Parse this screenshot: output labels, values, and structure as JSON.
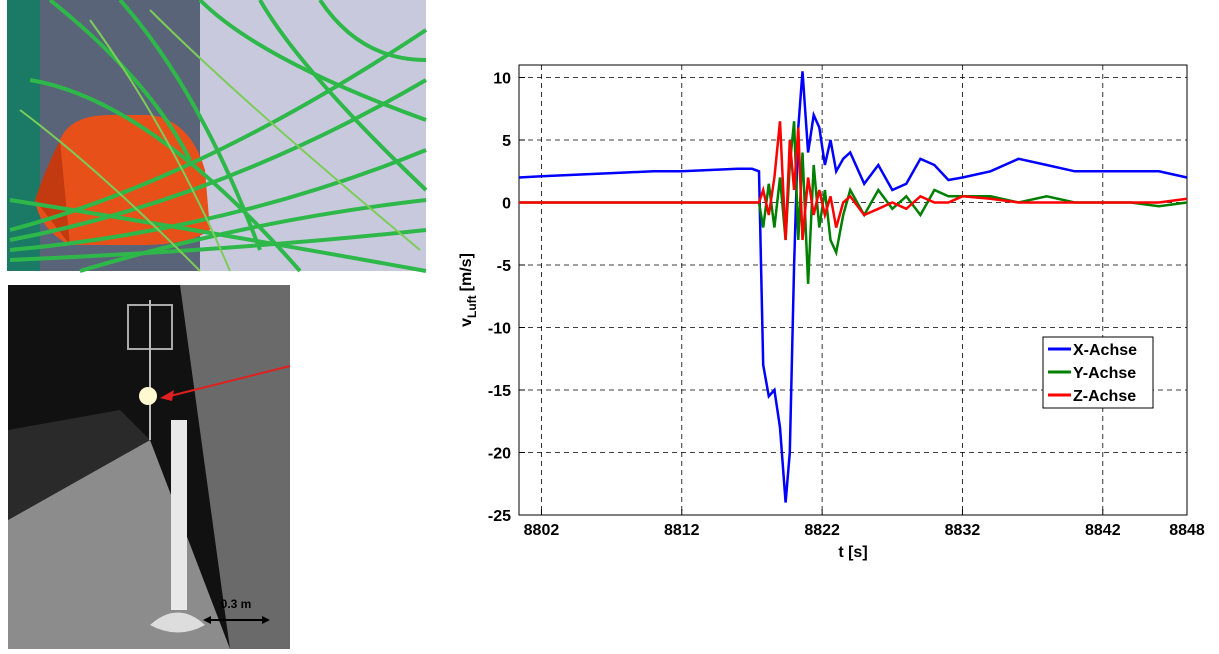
{
  "chart_data": {
    "type": "line",
    "xlabel": "t [s]",
    "ylabel": {
      "main": "v",
      "sub": "Luft",
      "unit": "[m/s]"
    },
    "x": [
      8800.4,
      8802,
      8804,
      8806,
      8808,
      8810,
      8812,
      8814,
      8816,
      8817,
      8817.5,
      8817.8,
      8818.2,
      8818.6,
      8819.0,
      8819.4,
      8819.7,
      8820.0,
      8820.3,
      8820.6,
      8821.0,
      8821.4,
      8821.8,
      8822.2,
      8822.6,
      8823,
      8823.5,
      8824,
      8825,
      8826,
      8827,
      8828,
      8829,
      8830,
      8831,
      8832,
      8834,
      8836,
      8838,
      8840,
      8842,
      8844,
      8846,
      8848
    ],
    "series": [
      {
        "name": "X-Achse",
        "color": "#0000ff",
        "values": [
          2.0,
          2.1,
          2.2,
          2.3,
          2.4,
          2.5,
          2.5,
          2.6,
          2.7,
          2.7,
          2.5,
          -13,
          -15.5,
          -15,
          -18,
          -24,
          -20,
          -5,
          6,
          10.5,
          4,
          7,
          6,
          3,
          5,
          2.5,
          3.5,
          4,
          1.5,
          3,
          1,
          1.5,
          3.5,
          3,
          1.8,
          2,
          2.5,
          3.5,
          3,
          2.5,
          2.5,
          2.5,
          2.5,
          2.0
        ]
      },
      {
        "name": "Y-Achse",
        "color": "#007f00",
        "values": [
          0,
          0,
          0,
          0,
          0,
          0,
          0,
          0,
          0,
          0,
          0,
          -2,
          1.5,
          -2,
          2,
          -3,
          3,
          6.5,
          -3,
          4,
          -6.5,
          3,
          -2,
          1,
          -3,
          -4,
          -1,
          1,
          -1,
          1,
          -0.5,
          0.5,
          -1,
          1,
          0.5,
          0.5,
          0.5,
          0,
          0.5,
          0,
          0,
          0,
          -0.3,
          0
        ]
      },
      {
        "name": "Z-Achse",
        "color": "#ff0000",
        "values": [
          0,
          0,
          0,
          0,
          0,
          0,
          0,
          0,
          0,
          0,
          0,
          1,
          -1,
          2,
          6.5,
          -3,
          5,
          1,
          6,
          -3,
          2,
          -1,
          1,
          -1,
          0.5,
          -2,
          0,
          0.5,
          -1,
          -0.5,
          0,
          -0.5,
          0.5,
          0,
          0,
          0.5,
          0.3,
          0,
          0,
          0,
          0,
          0,
          0,
          0.3
        ]
      }
    ],
    "xlim": [
      8800.4,
      8848
    ],
    "xticks": [
      8802,
      8812,
      8822,
      8832,
      8842,
      8848
    ],
    "ylim": [
      -25,
      11
    ],
    "yticks": [
      -25,
      -20,
      -15,
      -10,
      -5,
      0,
      5,
      10
    ],
    "grid": true,
    "legend": "right"
  },
  "photo": {
    "scale_label": "0.3 m"
  }
}
